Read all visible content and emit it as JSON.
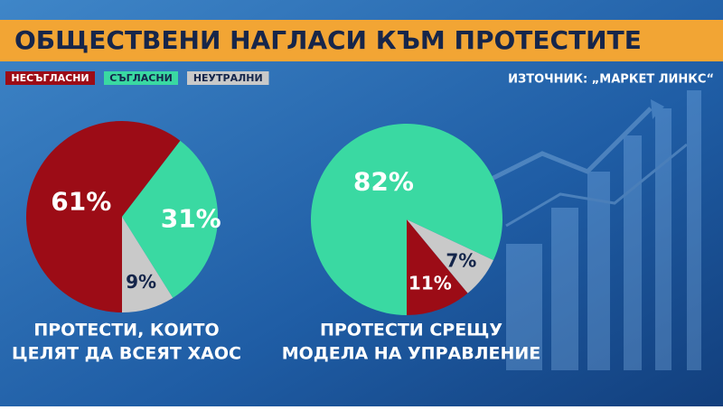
{
  "title": "ОБЩЕСТВЕНИ НАГЛАСИ КЪМ ПРОТЕСТИТЕ",
  "source": "ИЗТОЧНИК: „МАРКЕТ ЛИНКС“",
  "legend": [
    {
      "name": "НЕСЪГЛАСНИ",
      "color": "#9c0c16"
    },
    {
      "name": "СЪГЛАСНИ",
      "color": "#3ad9a2"
    },
    {
      "name": "НЕУТРАЛНИ",
      "color": "#c9c9c9"
    }
  ],
  "chart_data": [
    {
      "type": "pie",
      "title": [
        "ПРОТЕСТИ, КОИТО",
        "ЦЕЛЯТ ДА ВСЕЯТ ХАОС"
      ],
      "values": [
        61,
        31,
        9
      ],
      "value_labels": [
        "61%",
        "31%",
        "9%"
      ]
    },
    {
      "type": "pie",
      "title": [
        "ПРОТЕСТИ СРЕЩУ",
        "МОДЕЛА НА УПРАВЛЕНИЕ"
      ],
      "values": [
        11,
        82,
        7
      ],
      "value_labels": [
        "11%",
        "82%",
        "7%"
      ]
    }
  ]
}
